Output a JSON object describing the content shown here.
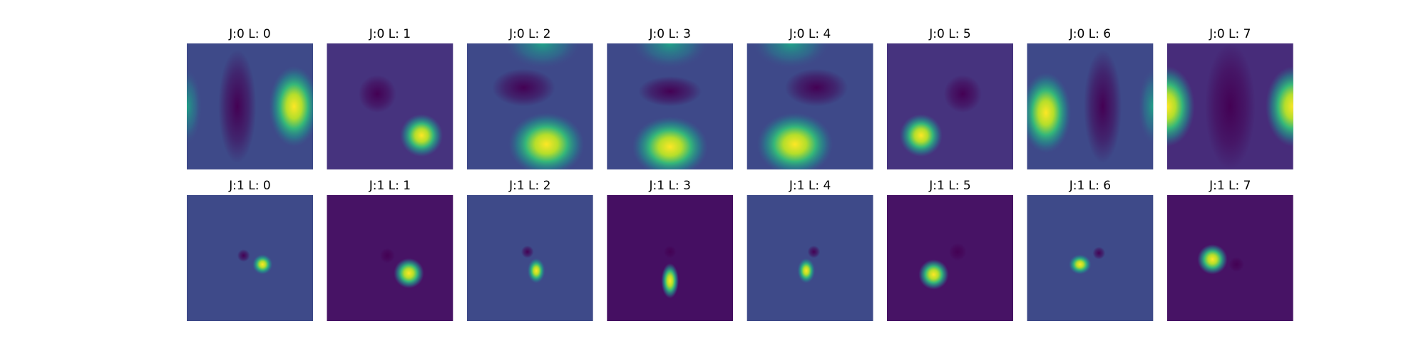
{
  "panels": [
    [
      {
        "title": "J:0 L: 0"
      },
      {
        "title": "J:0 L: 1"
      },
      {
        "title": "J:0 L: 2"
      },
      {
        "title": "J:0 L: 3"
      },
      {
        "title": "J:0 L: 4"
      },
      {
        "title": "J:0 L: 5"
      },
      {
        "title": "J:0 L: 6"
      },
      {
        "title": "J:0 L: 7"
      }
    ],
    [
      {
        "title": "J:1 L: 0"
      },
      {
        "title": "J:1 L: 1"
      },
      {
        "title": "J:1 L: 2"
      },
      {
        "title": "J:1 L: 3"
      },
      {
        "title": "J:1 L: 4"
      },
      {
        "title": "J:1 L: 5"
      },
      {
        "title": "J:1 L: 6"
      },
      {
        "title": "J:1 L: 7"
      }
    ]
  ]
}
